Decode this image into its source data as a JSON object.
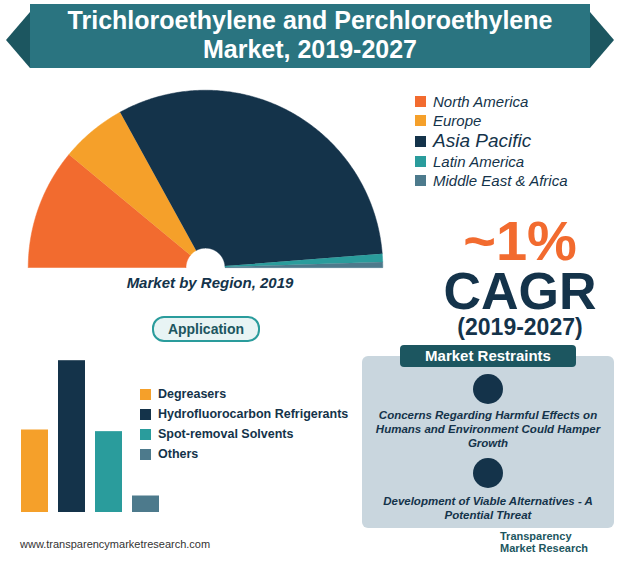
{
  "title": "Trichloroethylene and Perchloroethylene Market, 2019-2027",
  "chart_data": [
    {
      "type": "pie",
      "title": "Market by Region, 2019",
      "categories": [
        "North America",
        "Europe",
        "Asia Pacific",
        "Latin America",
        "Middle East & Africa"
      ],
      "values": [
        22,
        12,
        63.5,
        1.5,
        1
      ],
      "colors": [
        "#f26b2f",
        "#f5a02a",
        "#14334a",
        "#2a9c9c",
        "#4d7a8c"
      ],
      "tick_labels": false
    },
    {
      "type": "bar",
      "title": "Application",
      "categories": [
        "Degreasers",
        "Hydrofluorocarbon Refrigerants",
        "Spot-removal Solvents",
        "Others"
      ],
      "values": [
        25,
        46,
        24.5,
        5
      ],
      "colors": [
        "#f5a02a",
        "#14334a",
        "#2a9c9c",
        "#4d7a8c"
      ],
      "ylim": [
        0,
        50
      ],
      "tick_labels": false
    }
  ],
  "cagr": {
    "value": "~1%",
    "label": "CAGR",
    "period": "(2019-2027)"
  },
  "market_restraints": {
    "title": "Market Restraints",
    "items": [
      "Concerns Regarding Harmful Effects on Humans and Environment Could Hamper Growth",
      "Development of Viable Alternatives - A Potential Threat"
    ]
  },
  "footer": {
    "url": "www.transparencymarketresearch.com",
    "brand": "Transparency Market Research"
  }
}
